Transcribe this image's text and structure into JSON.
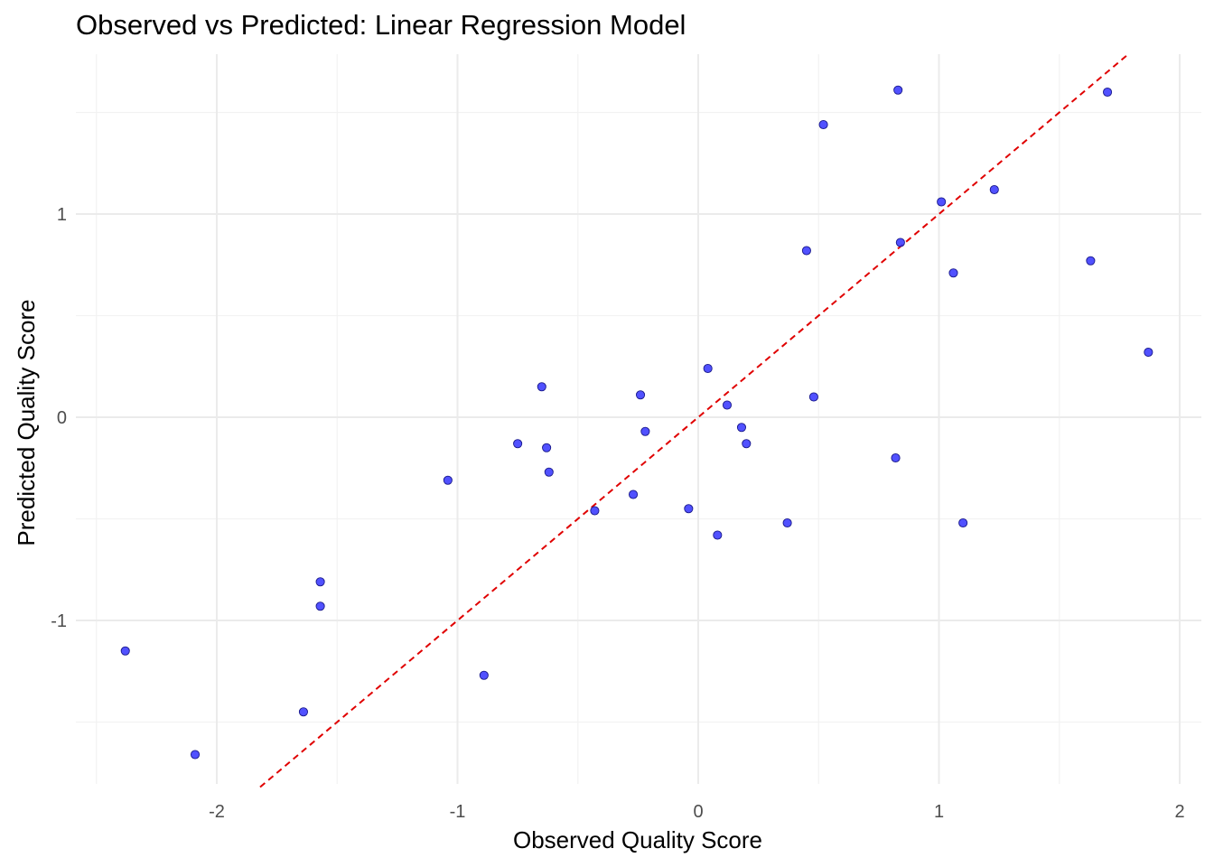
{
  "chart_data": {
    "type": "scatter",
    "title": "Observed vs Predicted: Linear Regression Model",
    "xlabel": "Observed Quality Score",
    "ylabel": "Predicted Quality Score",
    "xlim": [
      -2.5,
      2.1
    ],
    "ylim": [
      -1.8,
      1.8
    ],
    "x_ticks": [
      -2,
      -1,
      0,
      1,
      2
    ],
    "x_tick_labels": [
      "-2",
      "-1",
      "0",
      "1",
      "2"
    ],
    "y_ticks": [
      -1,
      0,
      1
    ],
    "y_tick_labels": [
      "-1",
      "0",
      "1"
    ],
    "grid": true,
    "point_color": "#3333ff",
    "point_outline": "#1a1a8c",
    "reference_line": {
      "style": "dashed",
      "color": "#e00000",
      "x": [
        -1.82,
        1.78
      ],
      "y": [
        -1.82,
        1.78
      ]
    },
    "points": [
      {
        "x": -2.38,
        "y": -1.15
      },
      {
        "x": -2.09,
        "y": -1.66
      },
      {
        "x": -1.64,
        "y": -1.45
      },
      {
        "x": -1.57,
        "y": -0.81
      },
      {
        "x": -1.57,
        "y": -0.93
      },
      {
        "x": -1.04,
        "y": -0.31
      },
      {
        "x": -0.89,
        "y": -1.27
      },
      {
        "x": -0.75,
        "y": -0.13
      },
      {
        "x": -0.65,
        "y": 0.15
      },
      {
        "x": -0.63,
        "y": -0.15
      },
      {
        "x": -0.62,
        "y": -0.27
      },
      {
        "x": -0.43,
        "y": -0.46
      },
      {
        "x": -0.27,
        "y": -0.38
      },
      {
        "x": -0.24,
        "y": 0.11
      },
      {
        "x": -0.22,
        "y": -0.07
      },
      {
        "x": -0.04,
        "y": -0.45
      },
      {
        "x": 0.04,
        "y": 0.24
      },
      {
        "x": 0.08,
        "y": -0.58
      },
      {
        "x": 0.12,
        "y": 0.06
      },
      {
        "x": 0.18,
        "y": -0.05
      },
      {
        "x": 0.2,
        "y": -0.13
      },
      {
        "x": 0.37,
        "y": -0.52
      },
      {
        "x": 0.45,
        "y": 0.82
      },
      {
        "x": 0.48,
        "y": 0.1
      },
      {
        "x": 0.52,
        "y": 1.44
      },
      {
        "x": 0.82,
        "y": -0.2
      },
      {
        "x": 0.83,
        "y": 1.61
      },
      {
        "x": 0.84,
        "y": 0.86
      },
      {
        "x": 1.01,
        "y": 1.06
      },
      {
        "x": 1.06,
        "y": 0.71
      },
      {
        "x": 1.1,
        "y": -0.52
      },
      {
        "x": 1.23,
        "y": 1.12
      },
      {
        "x": 1.63,
        "y": 0.77
      },
      {
        "x": 1.7,
        "y": 1.6
      },
      {
        "x": 1.87,
        "y": 0.32
      }
    ]
  }
}
